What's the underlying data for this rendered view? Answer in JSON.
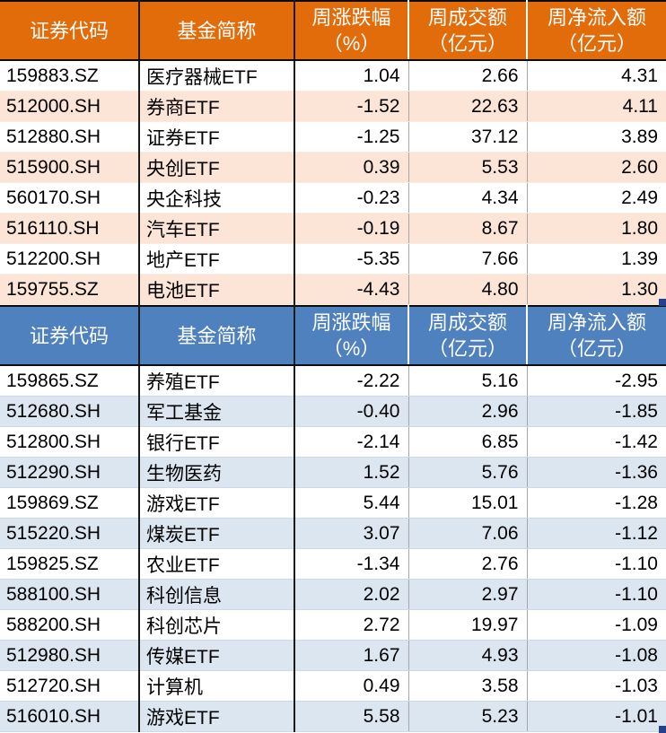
{
  "colors": {
    "header_orange": "#E26B0A",
    "row_peach": "#FCE4D6",
    "header_blue": "#4E81BD",
    "row_blue": "#DCE6F1",
    "grid_dark": "#1a1a1a",
    "grid_gray": "#a6a6a6",
    "fill_handle_navy": "#24408E",
    "text": "#000000",
    "header_text": "#FFFFFF"
  },
  "tables": [
    {
      "theme": "orange",
      "headers": [
        "证券代码",
        "基金简称",
        "周涨跌幅\n（%）",
        "周成交额\n（亿元）",
        "周净流入额\n（亿元）"
      ],
      "rows": [
        {
          "code": "159883.SZ",
          "name": "医疗器械ETF",
          "chg": "1.04",
          "vol": "2.66",
          "inflow": "4.31"
        },
        {
          "code": "512000.SH",
          "name": "券商ETF",
          "chg": "-1.52",
          "vol": "22.63",
          "inflow": "4.11"
        },
        {
          "code": "512880.SH",
          "name": "证券ETF",
          "chg": "-1.25",
          "vol": "37.12",
          "inflow": "3.89"
        },
        {
          "code": "515900.SH",
          "name": "央创ETF",
          "chg": "0.39",
          "vol": "5.53",
          "inflow": "2.60"
        },
        {
          "code": "560170.SH",
          "name": "央企科技",
          "chg": "-0.23",
          "vol": "4.34",
          "inflow": "2.49"
        },
        {
          "code": "516110.SH",
          "name": "汽车ETF",
          "chg": "-0.19",
          "vol": "8.67",
          "inflow": "1.80"
        },
        {
          "code": "512200.SH",
          "name": "地产ETF",
          "chg": "-5.35",
          "vol": "7.66",
          "inflow": "1.39"
        },
        {
          "code": "159755.SZ",
          "name": "电池ETF",
          "chg": "-4.43",
          "vol": "4.80",
          "inflow": "1.30"
        }
      ]
    },
    {
      "theme": "blue",
      "headers": [
        "证券代码",
        "基金简称",
        "周涨跌幅\n（%）",
        "周成交额\n（亿元）",
        "周净流入额\n（亿元）"
      ],
      "rows": [
        {
          "code": "159865.SZ",
          "name": "养殖ETF",
          "chg": "-2.22",
          "vol": "5.16",
          "inflow": "-2.95"
        },
        {
          "code": "512680.SH",
          "name": "军工基金",
          "chg": "-0.40",
          "vol": "2.96",
          "inflow": "-1.85"
        },
        {
          "code": "512800.SH",
          "name": "银行ETF",
          "chg": "-2.14",
          "vol": "6.85",
          "inflow": "-1.42"
        },
        {
          "code": "512290.SH",
          "name": "生物医药",
          "chg": "1.52",
          "vol": "5.76",
          "inflow": "-1.36"
        },
        {
          "code": "159869.SZ",
          "name": "游戏ETF",
          "chg": "5.44",
          "vol": "15.01",
          "inflow": "-1.28"
        },
        {
          "code": "515220.SH",
          "name": "煤炭ETF",
          "chg": "3.07",
          "vol": "7.06",
          "inflow": "-1.12"
        },
        {
          "code": "159825.SZ",
          "name": "农业ETF",
          "chg": "-1.34",
          "vol": "2.76",
          "inflow": "-1.10"
        },
        {
          "code": "588100.SH",
          "name": "科创信息",
          "chg": "2.02",
          "vol": "2.97",
          "inflow": "-1.10"
        },
        {
          "code": "588200.SH",
          "name": "科创芯片",
          "chg": "2.72",
          "vol": "19.97",
          "inflow": "-1.09"
        },
        {
          "code": "512980.SH",
          "name": "传媒ETF",
          "chg": "1.67",
          "vol": "4.93",
          "inflow": "-1.08"
        },
        {
          "code": "512720.SH",
          "name": "计算机",
          "chg": "0.49",
          "vol": "3.58",
          "inflow": "-1.03"
        },
        {
          "code": "516010.SH",
          "name": "游戏ETF",
          "chg": "5.58",
          "vol": "5.23",
          "inflow": "-1.01"
        }
      ]
    }
  ]
}
